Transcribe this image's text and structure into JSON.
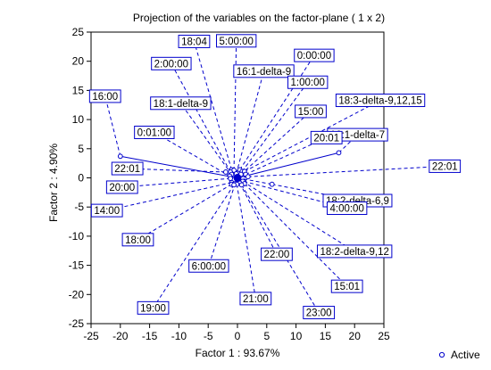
{
  "chart_data": {
    "type": "scatter",
    "title": "Projection of the variables on the factor-plane (  1 x  2)",
    "xlabel": "Factor 1 : 93.67%",
    "ylabel": "Factor 2 :  4.90%",
    "xlim": [
      -25,
      25
    ],
    "ylim": [
      -25,
      25
    ],
    "xticks": [
      -25,
      -20,
      -15,
      -10,
      -5,
      0,
      5,
      10,
      15,
      20,
      25
    ],
    "yticks": [
      -25,
      -20,
      -15,
      -10,
      -5,
      0,
      5,
      10,
      15,
      20,
      25
    ],
    "grid": false,
    "legend": {
      "position": "bottom-right",
      "entries": [
        "Active"
      ]
    },
    "colors": {
      "series": "#0000cc",
      "axis": "#000000"
    },
    "series": [
      {
        "name": "Active",
        "points": [
          {
            "label": "16:00",
            "x": -20.0,
            "y": 3.7,
            "lx": -22.6,
            "ly": 14.0,
            "solid": true
          },
          {
            "label": "16:1-delta-7",
            "x": 17.3,
            "y": 4.3,
            "lx": 20.5,
            "ly": 7.4,
            "solid": true
          },
          {
            "label": "18:2-delta-6,9",
            "x": 5.9,
            "y": -1.1,
            "lx": 20.5,
            "ly": -3.9,
            "solid": false
          },
          {
            "label": "22:01",
            "x": -2.0,
            "y": 1.0,
            "lx": -18.8,
            "ly": 1.6,
            "solid": false
          },
          {
            "label": "18:04",
            "x": -1.0,
            "y": 1.4,
            "lx": -7.4,
            "ly": 23.4,
            "solid": false
          },
          {
            "label": "5:00:00",
            "x": -0.6,
            "y": 1.3,
            "lx": -0.2,
            "ly": 23.5,
            "solid": false
          },
          {
            "label": "2:00:00",
            "x": -1.2,
            "y": 1.0,
            "lx": -11.3,
            "ly": 19.6,
            "solid": false
          },
          {
            "label": "16:1-delta-9",
            "x": -0.2,
            "y": 0.7,
            "lx": 4.5,
            "ly": 18.3,
            "solid": false
          },
          {
            "label": "0:00:00",
            "x": 0.4,
            "y": 1.4,
            "lx": 13.1,
            "ly": 21.0,
            "solid": false
          },
          {
            "label": "1:00:00",
            "x": 0.8,
            "y": 1.1,
            "lx": 12.0,
            "ly": 16.4,
            "solid": false
          },
          {
            "label": "18:1-delta-9",
            "x": -1.0,
            "y": 0.6,
            "lx": -9.7,
            "ly": 12.8,
            "solid": false
          },
          {
            "label": "18:3-delta-9,12,15",
            "x": 1.2,
            "y": 1.1,
            "lx": 24.4,
            "ly": 13.3,
            "solid": false
          },
          {
            "label": "15:00",
            "x": 0.6,
            "y": 0.6,
            "lx": 12.5,
            "ly": 11.4,
            "solid": false
          },
          {
            "label": "0:01:00",
            "x": -1.3,
            "y": 0.3,
            "lx": -14.2,
            "ly": 7.8,
            "solid": false
          },
          {
            "label": "20:01",
            "x": 1.4,
            "y": 0.6,
            "lx": 15.2,
            "ly": 6.9,
            "solid": false
          },
          {
            "label": "22:01",
            "x": 1.8,
            "y": 0.2,
            "lx": 35.4,
            "ly": 2.0,
            "solid": false
          },
          {
            "label": "20:00",
            "x": -1.2,
            "y": -0.1,
            "lx": -19.7,
            "ly": -1.6,
            "solid": false
          },
          {
            "label": "14:00",
            "x": -1.0,
            "y": -0.8,
            "lx": -22.3,
            "ly": -5.6,
            "solid": false
          },
          {
            "label": "18:00",
            "x": -1.0,
            "y": -1.1,
            "lx": -17.0,
            "ly": -10.6,
            "solid": false
          },
          {
            "label": "4:00:00",
            "x": 1.1,
            "y": -0.6,
            "lx": 18.7,
            "ly": -5.2,
            "solid": false
          },
          {
            "label": "18:2-delta-9,12",
            "x": 0.9,
            "y": -0.6,
            "lx": 20.0,
            "ly": -12.6,
            "solid": false
          },
          {
            "label": "22:00",
            "x": 0.4,
            "y": -0.9,
            "lx": 6.7,
            "ly": -13.1,
            "solid": false
          },
          {
            "label": "6:00:00",
            "x": -0.4,
            "y": -1.0,
            "lx": -4.9,
            "ly": -15.1,
            "solid": false
          },
          {
            "label": "15:01",
            "x": 1.2,
            "y": -1.0,
            "lx": 18.7,
            "ly": -18.6,
            "solid": false
          },
          {
            "label": "21:00",
            "x": -0.1,
            "y": -1.1,
            "lx": 3.1,
            "ly": -20.7,
            "solid": false
          },
          {
            "label": "19:00",
            "x": -0.6,
            "y": -1.2,
            "lx": -14.4,
            "ly": -22.3,
            "solid": false
          },
          {
            "label": "23:00",
            "x": 0.7,
            "y": -1.2,
            "lx": 13.9,
            "ly": -23.1,
            "solid": false
          }
        ]
      }
    ]
  }
}
